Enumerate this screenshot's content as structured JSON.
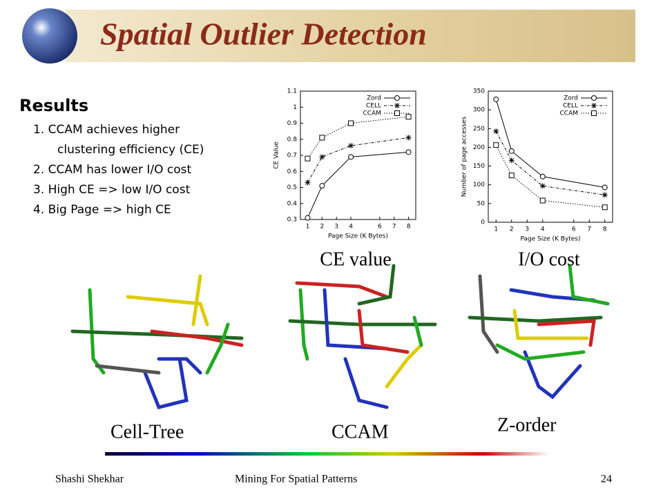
{
  "header": {
    "title": "Spatial Outlier Detection"
  },
  "results": {
    "heading": "Results",
    "items": [
      "1. CCAM achieves higher",
      "clustering efficiency (CE)",
      "2. CCAM has lower I/O cost",
      "3. High CE => low I/O cost",
      "4. Big Page => high CE"
    ]
  },
  "chart_data": [
    {
      "type": "line",
      "xlabel": "Page Size (K Bytes)",
      "ylabel": "CE Value",
      "caption": "CE value",
      "x": [
        1,
        2,
        4,
        8
      ],
      "xlim": [
        0.5,
        8.5
      ],
      "xticks": [
        1,
        2,
        3,
        4,
        6,
        7,
        8
      ],
      "ylim": [
        0.3,
        1.1
      ],
      "yticks": [
        0.3,
        0.4,
        0.5,
        0.6,
        0.7,
        0.8,
        0.9,
        1,
        1.1
      ],
      "legend": "top-right",
      "series": [
        {
          "name": "Zord",
          "color": "#000000",
          "marker": "circle",
          "dash": "solid",
          "values": [
            0.31,
            0.51,
            0.69,
            0.72
          ]
        },
        {
          "name": "CELL",
          "color": "#000000",
          "marker": "star",
          "dash": "dashdot",
          "values": [
            0.53,
            0.69,
            0.76,
            0.81
          ]
        },
        {
          "name": "CCAM",
          "color": "#000000",
          "marker": "square",
          "dash": "dotted",
          "values": [
            0.68,
            0.81,
            0.9,
            0.94
          ]
        }
      ]
    },
    {
      "type": "line",
      "xlabel": "Page Size (K Bytes)",
      "ylabel": "Number of page accesses",
      "caption": "I/O cost",
      "x": [
        1,
        2,
        4,
        8
      ],
      "xlim": [
        0.5,
        8.5
      ],
      "xticks": [
        1,
        2,
        3,
        4,
        6,
        7,
        8
      ],
      "ylim": [
        0,
        350
      ],
      "yticks": [
        0,
        50,
        100,
        150,
        200,
        250,
        300,
        350
      ],
      "legend": "top-right",
      "series": [
        {
          "name": "Zord",
          "color": "#000000",
          "marker": "circle",
          "dash": "solid",
          "values": [
            328,
            190,
            122,
            93
          ]
        },
        {
          "name": "CELL",
          "color": "#000000",
          "marker": "star",
          "dash": "dashdot",
          "values": [
            243,
            165,
            97,
            73
          ]
        },
        {
          "name": "CCAM",
          "color": "#000000",
          "marker": "square",
          "dash": "dotted",
          "values": [
            206,
            125,
            58,
            40
          ]
        }
      ]
    }
  ],
  "maps": [
    "Cell-Tree",
    "CCAM",
    "Z-order"
  ],
  "footer": {
    "author": "Shashi Shekhar",
    "course": "Mining For Spatial Patterns",
    "page": "24"
  }
}
